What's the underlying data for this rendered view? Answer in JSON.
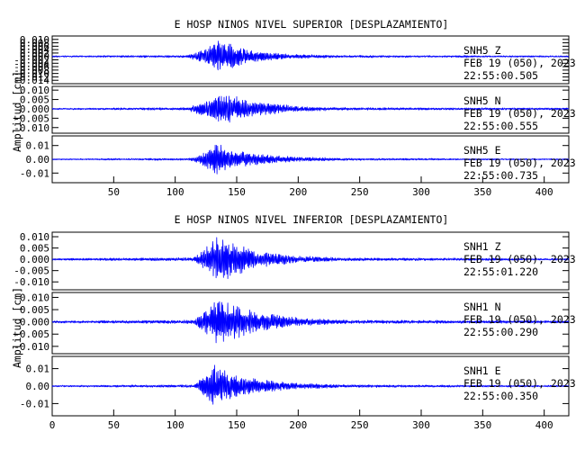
{
  "chart_data": [
    {
      "type": "line",
      "title": "E HOSP NINOS NIVEL SUPERIOR [DESPLAZAMIENTO]",
      "ylabel": "Amplitud [cm]",
      "xlabel": "",
      "xlim": [
        0,
        420
      ],
      "xticks": [
        50,
        100,
        150,
        200,
        250,
        300,
        350,
        400
      ],
      "xtick_labels": [
        "50",
        "100",
        "150",
        "200",
        "250",
        "300",
        "350",
        "400"
      ],
      "grid": false,
      "color": "#0000ff",
      "series": [
        {
          "station": "SNH5",
          "component": "Z",
          "date": "FEB 19 (050), 2023",
          "time": "22:55:00.505",
          "ylim": [
            -0.016,
            0.012
          ],
          "yticks": [
            0.01,
            0.008,
            0.006,
            0.004,
            0.002,
            0.0,
            -0.002,
            -0.004,
            -0.006,
            -0.008,
            -0.01,
            -0.012,
            -0.014
          ],
          "ytick_labels": [
            "0.010",
            "0.008",
            "0.006",
            "0.004",
            "0.002",
            "0.000",
            "-0.002",
            "-0.004",
            "-0.006",
            "-0.008",
            "-0.010",
            "-0.012",
            "-0.014"
          ],
          "noise": 0.0004,
          "envelope": [
            [
              0,
              0.0004
            ],
            [
              110,
              0.0007
            ],
            [
              125,
              0.005
            ],
            [
              135,
              0.01
            ],
            [
              145,
              0.008
            ],
            [
              160,
              0.004
            ],
            [
              190,
              0.0015
            ],
            [
              230,
              0.0007
            ],
            [
              420,
              0.0004
            ]
          ],
          "seed": 11
        },
        {
          "station": "SNH5",
          "component": "N",
          "date": "FEB 19 (050), 2023",
          "time": "22:55:00.555",
          "ylim": [
            -0.013,
            0.012
          ],
          "yticks": [
            0.01,
            0.005,
            0.0,
            -0.005,
            -0.01
          ],
          "ytick_labels": [
            "0.010",
            "0.005",
            "0.000",
            "-0.005",
            "-0.010"
          ],
          "noise": 0.0004,
          "envelope": [
            [
              0,
              0.0004
            ],
            [
              110,
              0.0007
            ],
            [
              125,
              0.005
            ],
            [
              135,
              0.009
            ],
            [
              145,
              0.008
            ],
            [
              165,
              0.004
            ],
            [
              200,
              0.0015
            ],
            [
              240,
              0.0007
            ],
            [
              420,
              0.0005
            ]
          ],
          "seed": 23
        },
        {
          "station": "SNH5",
          "component": "E",
          "date": "FEB 19 (050), 2023",
          "time": "22:55:00.735",
          "ylim": [
            -0.017,
            0.017
          ],
          "yticks": [
            0.01,
            0.0,
            -0.01
          ],
          "ytick_labels": [
            "0.01",
            "0.00",
            "-0.01"
          ],
          "noise": 0.0004,
          "envelope": [
            [
              0,
              0.0004
            ],
            [
              112,
              0.0008
            ],
            [
              125,
              0.006
            ],
            [
              132,
              0.013
            ],
            [
              142,
              0.009
            ],
            [
              160,
              0.005
            ],
            [
              195,
              0.002
            ],
            [
              240,
              0.0008
            ],
            [
              420,
              0.0004
            ]
          ],
          "seed": 37
        }
      ]
    },
    {
      "type": "line",
      "title": "E HOSP NINOS NIVEL INFERIOR [DESPLAZAMIENTO]",
      "ylabel": "Amplitud [cm]",
      "xlabel": "",
      "xlim": [
        0,
        420
      ],
      "xticks": [
        0,
        50,
        100,
        150,
        200,
        250,
        300,
        350,
        400
      ],
      "xtick_labels": [
        "0",
        "50",
        "100",
        "150",
        "200",
        "250",
        "300",
        "350",
        "400"
      ],
      "grid": false,
      "color": "#0000ff",
      "series": [
        {
          "station": "SNH1",
          "component": "Z",
          "date": "FEB 19 (050), 2023",
          "time": "22:55:01.220",
          "ylim": [
            -0.0135,
            0.012
          ],
          "yticks": [
            0.01,
            0.005,
            0.0,
            -0.005,
            -0.01
          ],
          "ytick_labels": [
            "0.010",
            "0.005",
            "0.000",
            "-0.005",
            "-0.010"
          ],
          "noise": 0.0004,
          "envelope": [
            [
              0,
              0.0004
            ],
            [
              115,
              0.0008
            ],
            [
              125,
              0.006
            ],
            [
              135,
              0.011
            ],
            [
              145,
              0.009
            ],
            [
              165,
              0.004
            ],
            [
              200,
              0.0015
            ],
            [
              240,
              0.0007
            ],
            [
              420,
              0.0004
            ]
          ],
          "seed": 53
        },
        {
          "station": "SNH1",
          "component": "N",
          "date": "FEB 19 (050), 2023",
          "time": "22:55:00.290",
          "ylim": [
            -0.013,
            0.012
          ],
          "yticks": [
            0.01,
            0.005,
            0.0,
            -0.005,
            -0.01
          ],
          "ytick_labels": [
            "0.010",
            "0.005",
            "0.000",
            "-0.005",
            "-0.010"
          ],
          "noise": 0.0004,
          "envelope": [
            [
              0,
              0.0004
            ],
            [
              115,
              0.0008
            ],
            [
              125,
              0.005
            ],
            [
              135,
              0.01
            ],
            [
              145,
              0.008
            ],
            [
              170,
              0.004
            ],
            [
              205,
              0.0015
            ],
            [
              245,
              0.0007
            ],
            [
              420,
              0.0005
            ]
          ],
          "seed": 71
        },
        {
          "station": "SNH1",
          "component": "E",
          "date": "FEB 19 (050), 2023",
          "time": "22:55:00.350",
          "ylim": [
            -0.017,
            0.017
          ],
          "yticks": [
            0.01,
            0.0,
            -0.01
          ],
          "ytick_labels": [
            "0.01",
            "0.00",
            "-0.01"
          ],
          "noise": 0.0004,
          "envelope": [
            [
              0,
              0.0004
            ],
            [
              115,
              0.0008
            ],
            [
              125,
              0.007
            ],
            [
              132,
              0.014
            ],
            [
              142,
              0.009
            ],
            [
              160,
              0.005
            ],
            [
              195,
              0.002
            ],
            [
              240,
              0.0008
            ],
            [
              420,
              0.0004
            ]
          ],
          "seed": 89
        }
      ]
    }
  ]
}
